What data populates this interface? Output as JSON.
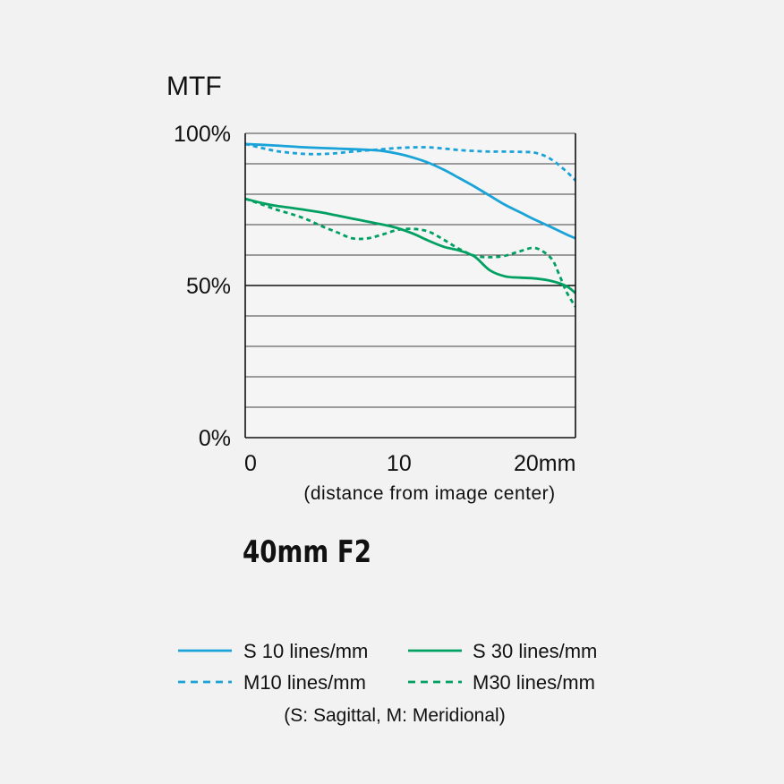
{
  "chart_data": {
    "type": "line",
    "title": "MTF",
    "subtitle": "40mm F2",
    "xlabel": "(distance from image center)",
    "ylabel": "MTF",
    "xlim": [
      0,
      21.6
    ],
    "ylim": [
      0,
      100
    ],
    "x_ticks": [
      {
        "value": 0,
        "label": "0"
      },
      {
        "value": 10,
        "label": "10"
      },
      {
        "value": 20,
        "label": "20mm"
      }
    ],
    "y_ticks": [
      {
        "value": 100,
        "label": "100%"
      },
      {
        "value": 50,
        "label": "50%"
      },
      {
        "value": 0,
        "label": "0%"
      }
    ],
    "grid": "horizontal every 10%",
    "legend_position": "bottom",
    "legend_note": "(S: Sagittal, M: Meridional)",
    "series": [
      {
        "name": "S 10 lines/mm",
        "color": "#1aa3d9",
        "dash": "solid",
        "x": [
          0,
          2,
          4,
          6,
          8,
          9,
          10,
          11,
          12,
          13,
          14,
          15,
          16,
          17,
          18,
          19,
          20,
          21,
          21.6
        ],
        "y": [
          96.5,
          96,
          95.4,
          95,
          94.6,
          94.2,
          93.3,
          92,
          90.3,
          88,
          85.3,
          82.5,
          79.5,
          76.5,
          74,
          71.5,
          69.2,
          66.8,
          65.5
        ]
      },
      {
        "name": "S 30 lines/mm",
        "color": "#00a062",
        "dash": "solid",
        "x": [
          0,
          1,
          2,
          3,
          4,
          5,
          6,
          7,
          8,
          9,
          10,
          11,
          12,
          13,
          14,
          15,
          16,
          17,
          18,
          19,
          20,
          21,
          21.6
        ],
        "y": [
          78.5,
          77.2,
          76.2,
          75.5,
          74.8,
          74,
          73,
          72,
          71,
          70,
          68.8,
          67,
          64.7,
          62.7,
          61.5,
          59.5,
          55,
          53,
          52.6,
          52.3,
          51.5,
          49.8,
          47.5
        ]
      },
      {
        "name": "M10 lines/mm",
        "color": "#1aa3d9",
        "dash": "dotted",
        "x": [
          0,
          1,
          2,
          3,
          4,
          5,
          6,
          7,
          8,
          9,
          10,
          11,
          12,
          13,
          14,
          15,
          16,
          17,
          18,
          19,
          20,
          21,
          21.6
        ],
        "y": [
          96.5,
          95.3,
          94.2,
          93.6,
          93.2,
          93.2,
          93.5,
          94,
          94.4,
          94.8,
          95.2,
          95.4,
          95.4,
          95,
          94.5,
          94.2,
          94,
          94,
          93.9,
          93.6,
          91.5,
          87.5,
          84.5
        ]
      },
      {
        "name": "M30 lines/mm",
        "color": "#00a062",
        "dash": "dotted",
        "x": [
          0,
          1,
          2,
          3,
          4,
          5,
          6,
          7,
          8,
          9,
          10,
          11,
          12,
          13,
          14,
          15,
          16,
          17,
          18,
          19,
          20,
          20.5,
          21,
          21.6
        ],
        "y": [
          78.5,
          76.8,
          75,
          73.5,
          71.8,
          69.5,
          67.5,
          65.5,
          65.5,
          66.8,
          68.3,
          68.6,
          67.7,
          65,
          62,
          59.8,
          59.3,
          59.8,
          61.3,
          62.3,
          59,
          54,
          48,
          43
        ]
      }
    ]
  }
}
